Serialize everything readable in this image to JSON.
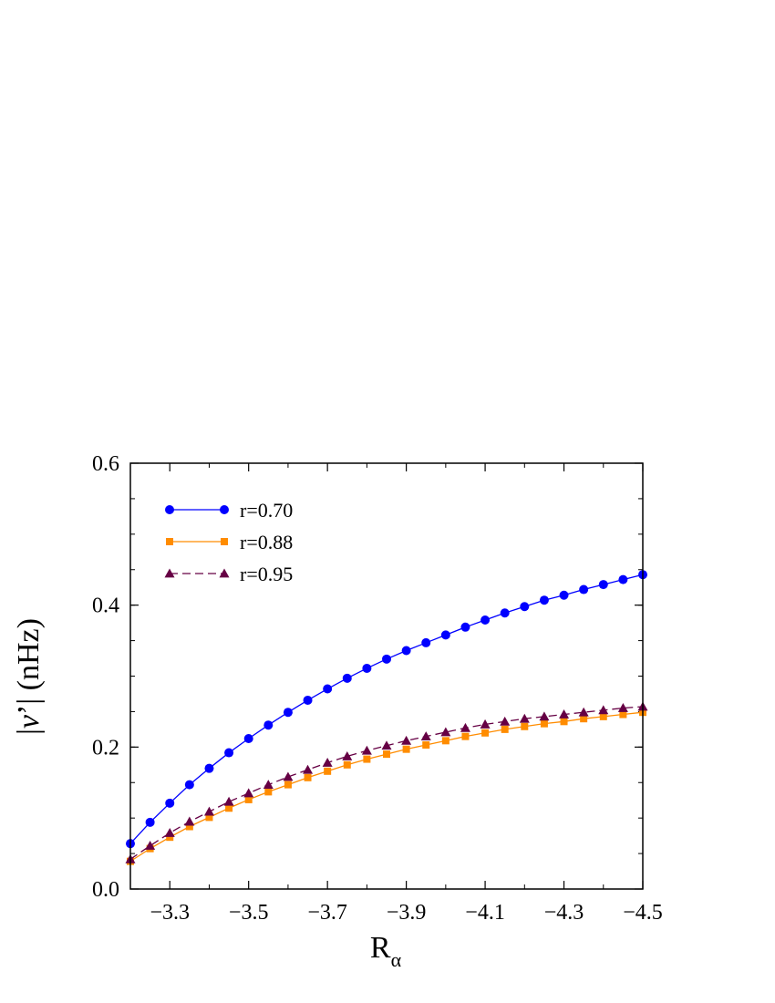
{
  "chart_data": {
    "type": "line",
    "xlabel_main": "R",
    "xlabel_sub": "α",
    "ylabel_pre": "|",
    "ylabel_italic": "ν",
    "ylabel_post": "’| (nHz)",
    "xlim": [
      -3.2,
      -4.5
    ],
    "ylim": [
      0.0,
      0.6
    ],
    "x_axis_reversed": true,
    "x_ticks": [
      -3.3,
      -3.5,
      -3.7,
      -3.9,
      -4.1,
      -4.3,
      -4.5
    ],
    "x_tick_labels": [
      "−3.3",
      "−3.5",
      "−3.7",
      "−3.9",
      "−4.1",
      "−4.3",
      "−4.5"
    ],
    "y_ticks": [
      0.0,
      0.2,
      0.4,
      0.6
    ],
    "y_tick_labels": [
      "0.0",
      "0.2",
      "0.4",
      "0.6"
    ],
    "grid": false,
    "legend_position": "top-left",
    "x": [
      -3.2,
      -3.25,
      -3.3,
      -3.35,
      -3.4,
      -3.45,
      -3.5,
      -3.55,
      -3.6,
      -3.65,
      -3.7,
      -3.75,
      -3.8,
      -3.85,
      -3.9,
      -3.95,
      -4.0,
      -4.05,
      -4.1,
      -4.15,
      -4.2,
      -4.25,
      -4.3,
      -4.35,
      -4.4,
      -4.45,
      -4.5
    ],
    "series": [
      {
        "name": "r=0.70",
        "color": "#0000ff",
        "marker": "circle",
        "line": "solid",
        "values": [
          0.064,
          0.094,
          0.121,
          0.147,
          0.17,
          0.192,
          0.212,
          0.231,
          0.249,
          0.266,
          0.282,
          0.297,
          0.311,
          0.324,
          0.336,
          0.347,
          0.358,
          0.369,
          0.379,
          0.389,
          0.398,
          0.407,
          0.414,
          0.422,
          0.429,
          0.436,
          0.443
        ]
      },
      {
        "name": "r=0.88",
        "color": "#ff8c00",
        "marker": "square",
        "line": "solid",
        "values": [
          0.039,
          0.057,
          0.073,
          0.088,
          0.101,
          0.114,
          0.126,
          0.137,
          0.147,
          0.157,
          0.166,
          0.175,
          0.183,
          0.19,
          0.197,
          0.203,
          0.209,
          0.215,
          0.22,
          0.225,
          0.229,
          0.233,
          0.236,
          0.24,
          0.243,
          0.246,
          0.249
        ]
      },
      {
        "name": "r=0.95",
        "color": "#660044",
        "marker": "triangle",
        "line": "dashed",
        "values": [
          0.042,
          0.061,
          0.079,
          0.095,
          0.109,
          0.123,
          0.135,
          0.147,
          0.158,
          0.168,
          0.178,
          0.187,
          0.195,
          0.202,
          0.209,
          0.215,
          0.221,
          0.227,
          0.232,
          0.236,
          0.24,
          0.243,
          0.246,
          0.249,
          0.252,
          0.255,
          0.257
        ]
      }
    ]
  }
}
